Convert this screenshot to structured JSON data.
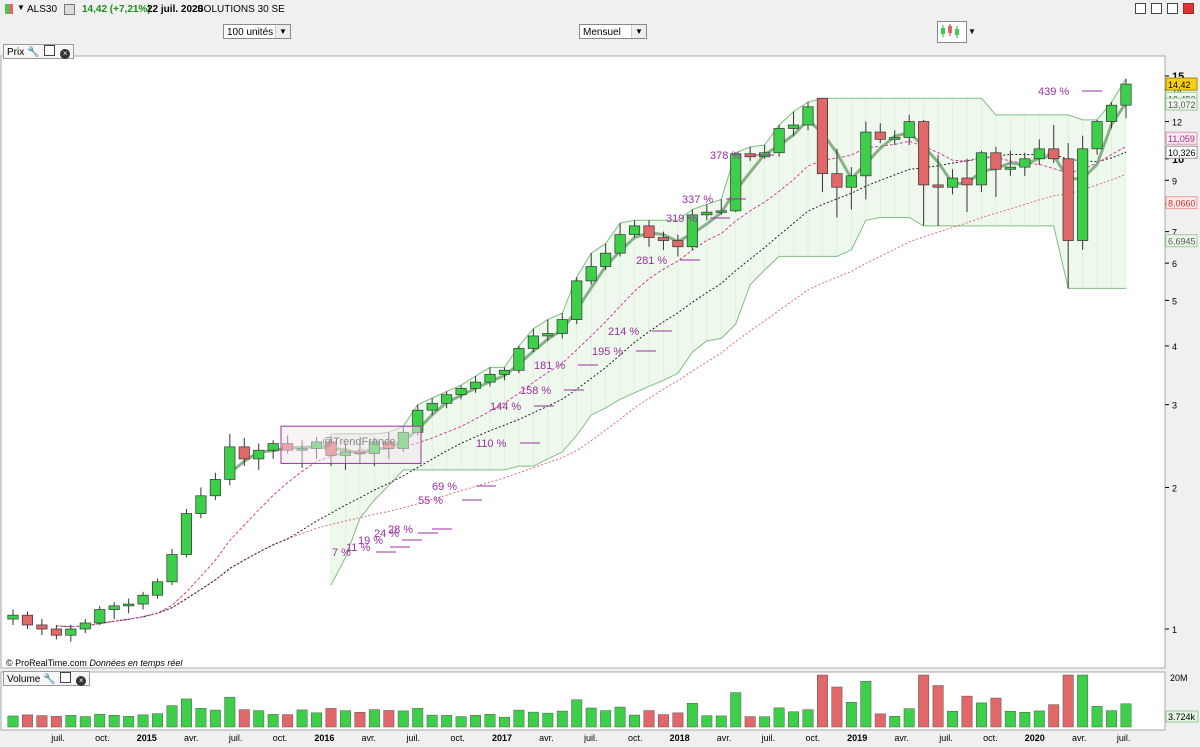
{
  "header": {
    "ticker": "ALS30",
    "change": "14,42 (+7,21%)",
    "date": "22 juil. 2020",
    "name": "SOLUTIONS 30 SE"
  },
  "toolbar": {
    "units_select": "100 unités",
    "period_select": "Mensuel"
  },
  "panels": {
    "price_label": "Prix",
    "volume_label": "Volume"
  },
  "watermark": "@TrendFrance",
  "footer": "© ProRealTime.com",
  "footer_italic": "Données en temps réel",
  "chart_data": {
    "type": "candlestick",
    "x_tick_labels": [
      "juil.",
      "oct.",
      "2015",
      "avr.",
      "juil.",
      "oct.",
      "2016",
      "avr.",
      "juil.",
      "oct.",
      "2017",
      "avr.",
      "juil.",
      "oct.",
      "2018",
      "avr.",
      "juil.",
      "oct.",
      "2019",
      "avr.",
      "juil.",
      "oct.",
      "2020",
      "avr.",
      "juil."
    ],
    "y_scale": "log",
    "y_ticks": [
      1,
      2,
      3,
      4,
      5,
      6,
      7,
      8,
      9,
      10,
      12,
      14,
      15
    ],
    "candles": [
      {
        "o": 1.05,
        "h": 1.1,
        "l": 1.02,
        "c": 1.07
      },
      {
        "o": 1.07,
        "h": 1.09,
        "l": 1.0,
        "c": 1.02
      },
      {
        "o": 1.02,
        "h": 1.05,
        "l": 0.97,
        "c": 1.0
      },
      {
        "o": 1.0,
        "h": 1.02,
        "l": 0.95,
        "c": 0.97
      },
      {
        "o": 0.97,
        "h": 1.02,
        "l": 0.94,
        "c": 1.0
      },
      {
        "o": 1.0,
        "h": 1.05,
        "l": 0.98,
        "c": 1.03
      },
      {
        "o": 1.03,
        "h": 1.12,
        "l": 1.02,
        "c": 1.1
      },
      {
        "o": 1.1,
        "h": 1.14,
        "l": 1.05,
        "c": 1.12
      },
      {
        "o": 1.12,
        "h": 1.16,
        "l": 1.08,
        "c": 1.13
      },
      {
        "o": 1.13,
        "h": 1.2,
        "l": 1.1,
        "c": 1.18
      },
      {
        "o": 1.18,
        "h": 1.28,
        "l": 1.16,
        "c": 1.26
      },
      {
        "o": 1.26,
        "h": 1.48,
        "l": 1.24,
        "c": 1.44
      },
      {
        "o": 1.44,
        "h": 1.8,
        "l": 1.42,
        "c": 1.76
      },
      {
        "o": 1.76,
        "h": 2.0,
        "l": 1.72,
        "c": 1.92
      },
      {
        "o": 1.92,
        "h": 2.15,
        "l": 1.88,
        "c": 2.08
      },
      {
        "o": 2.08,
        "h": 2.6,
        "l": 2.02,
        "c": 2.44
      },
      {
        "o": 2.44,
        "h": 2.55,
        "l": 2.22,
        "c": 2.3
      },
      {
        "o": 2.3,
        "h": 2.48,
        "l": 2.18,
        "c": 2.4
      },
      {
        "o": 2.4,
        "h": 2.52,
        "l": 2.3,
        "c": 2.48
      },
      {
        "o": 2.48,
        "h": 2.58,
        "l": 2.36,
        "c": 2.4
      },
      {
        "o": 2.4,
        "h": 2.52,
        "l": 2.2,
        "c": 2.42
      },
      {
        "o": 2.42,
        "h": 2.56,
        "l": 2.3,
        "c": 2.5
      },
      {
        "o": 2.5,
        "h": 2.58,
        "l": 2.22,
        "c": 2.34
      },
      {
        "o": 2.34,
        "h": 2.48,
        "l": 2.18,
        "c": 2.38
      },
      {
        "o": 2.38,
        "h": 2.52,
        "l": 2.25,
        "c": 2.36
      },
      {
        "o": 2.36,
        "h": 2.55,
        "l": 2.22,
        "c": 2.5
      },
      {
        "o": 2.5,
        "h": 2.62,
        "l": 2.3,
        "c": 2.42
      },
      {
        "o": 2.42,
        "h": 2.7,
        "l": 2.38,
        "c": 2.62
      },
      {
        "o": 2.62,
        "h": 3.0,
        "l": 2.58,
        "c": 2.92
      },
      {
        "o": 2.92,
        "h": 3.1,
        "l": 2.85,
        "c": 3.02
      },
      {
        "o": 3.02,
        "h": 3.2,
        "l": 2.95,
        "c": 3.15
      },
      {
        "o": 3.15,
        "h": 3.3,
        "l": 3.08,
        "c": 3.25
      },
      {
        "o": 3.25,
        "h": 3.45,
        "l": 3.18,
        "c": 3.35
      },
      {
        "o": 3.35,
        "h": 3.6,
        "l": 3.28,
        "c": 3.48
      },
      {
        "o": 3.48,
        "h": 3.6,
        "l": 3.38,
        "c": 3.55
      },
      {
        "o": 3.55,
        "h": 4.0,
        "l": 3.5,
        "c": 3.95
      },
      {
        "o": 3.95,
        "h": 4.35,
        "l": 3.88,
        "c": 4.2
      },
      {
        "o": 4.2,
        "h": 4.55,
        "l": 4.1,
        "c": 4.25
      },
      {
        "o": 4.25,
        "h": 4.7,
        "l": 4.15,
        "c": 4.55
      },
      {
        "o": 4.55,
        "h": 5.6,
        "l": 4.45,
        "c": 5.5
      },
      {
        "o": 5.5,
        "h": 6.3,
        "l": 5.4,
        "c": 5.9
      },
      {
        "o": 5.9,
        "h": 6.6,
        "l": 5.8,
        "c": 6.3
      },
      {
        "o": 6.3,
        "h": 7.3,
        "l": 6.2,
        "c": 6.9
      },
      {
        "o": 6.9,
        "h": 7.4,
        "l": 6.8,
        "c": 7.2
      },
      {
        "o": 7.2,
        "h": 7.4,
        "l": 6.5,
        "c": 6.8
      },
      {
        "o": 6.8,
        "h": 7.0,
        "l": 6.4,
        "c": 6.7
      },
      {
        "o": 6.7,
        "h": 6.9,
        "l": 6.2,
        "c": 6.5
      },
      {
        "o": 6.5,
        "h": 7.8,
        "l": 6.4,
        "c": 7.6
      },
      {
        "o": 7.6,
        "h": 8.0,
        "l": 7.4,
        "c": 7.7
      },
      {
        "o": 7.7,
        "h": 8.2,
        "l": 7.6,
        "c": 7.75
      },
      {
        "o": 7.75,
        "h": 10.3,
        "l": 7.7,
        "c": 10.25
      },
      {
        "o": 10.25,
        "h": 10.6,
        "l": 9.9,
        "c": 10.1
      },
      {
        "o": 10.1,
        "h": 10.7,
        "l": 10.0,
        "c": 10.3
      },
      {
        "o": 10.3,
        "h": 11.8,
        "l": 10.1,
        "c": 11.6
      },
      {
        "o": 11.6,
        "h": 12.6,
        "l": 11.2,
        "c": 11.8
      },
      {
        "o": 11.8,
        "h": 13.2,
        "l": 11.5,
        "c": 12.9
      },
      {
        "o": 13.45,
        "h": 13.45,
        "l": 8.5,
        "c": 9.3
      },
      {
        "o": 9.3,
        "h": 10.5,
        "l": 7.5,
        "c": 8.7
      },
      {
        "o": 8.7,
        "h": 9.6,
        "l": 7.8,
        "c": 9.2
      },
      {
        "o": 9.2,
        "h": 12.0,
        "l": 8.2,
        "c": 11.4
      },
      {
        "o": 11.4,
        "h": 11.9,
        "l": 10.8,
        "c": 11.0
      },
      {
        "o": 11.0,
        "h": 11.5,
        "l": 10.7,
        "c": 11.1
      },
      {
        "o": 11.1,
        "h": 12.4,
        "l": 10.7,
        "c": 12.0
      },
      {
        "o": 12.0,
        "h": 12.1,
        "l": 7.2,
        "c": 8.8
      },
      {
        "o": 8.8,
        "h": 10.2,
        "l": 7.2,
        "c": 8.7
      },
      {
        "o": 8.7,
        "h": 9.5,
        "l": 8.4,
        "c": 9.1
      },
      {
        "o": 9.1,
        "h": 10.0,
        "l": 7.7,
        "c": 8.8
      },
      {
        "o": 8.8,
        "h": 10.4,
        "l": 8.5,
        "c": 10.3
      },
      {
        "o": 10.3,
        "h": 10.6,
        "l": 8.3,
        "c": 9.5
      },
      {
        "o": 9.5,
        "h": 10.4,
        "l": 9.2,
        "c": 9.6
      },
      {
        "o": 9.6,
        "h": 10.3,
        "l": 9.2,
        "c": 10.0
      },
      {
        "o": 10.0,
        "h": 11.0,
        "l": 9.7,
        "c": 10.5
      },
      {
        "o": 10.5,
        "h": 11.8,
        "l": 9.8,
        "c": 10.0
      },
      {
        "o": 10.0,
        "h": 10.8,
        "l": 5.3,
        "c": 6.7
      },
      {
        "o": 6.7,
        "h": 11.2,
        "l": 6.4,
        "c": 10.5
      },
      {
        "o": 10.5,
        "h": 12.1,
        "l": 10.2,
        "c": 12.0
      },
      {
        "o": 12.0,
        "h": 13.2,
        "l": 11.6,
        "c": 13.0
      },
      {
        "o": 13.0,
        "h": 14.8,
        "l": 12.2,
        "c": 14.42
      }
    ],
    "volume_ticks": [
      "20M",
      "3.724k"
    ],
    "price_tags": [
      {
        "label": "14,42",
        "type": "last"
      },
      {
        "label": "13,450",
        "type": "upper"
      },
      {
        "label": "13,072",
        "type": "ma-green"
      },
      {
        "label": "11,059",
        "type": "ma-pink"
      },
      {
        "label": "10,326",
        "type": "ma-black"
      },
      {
        "label": "8,0660",
        "type": "ma-red"
      },
      {
        "label": "6,6945",
        "type": "lower"
      }
    ],
    "percent_labels": [
      "439 %",
      "378 %",
      "337 %",
      "319 %",
      "281 %",
      "214 %",
      "195 %",
      "181 %",
      "158 %",
      "144 %",
      "110 %",
      "69 %",
      "55 %",
      "28 %",
      "24 %",
      "19 %",
      "11 %",
      "7 %"
    ]
  },
  "colors": {
    "bull": "#3ecf4a",
    "bear": "#e06868",
    "upper_band": "#7fbf7f",
    "percent_text": "#9b30a0",
    "last_price_tag": "#f7d117"
  }
}
